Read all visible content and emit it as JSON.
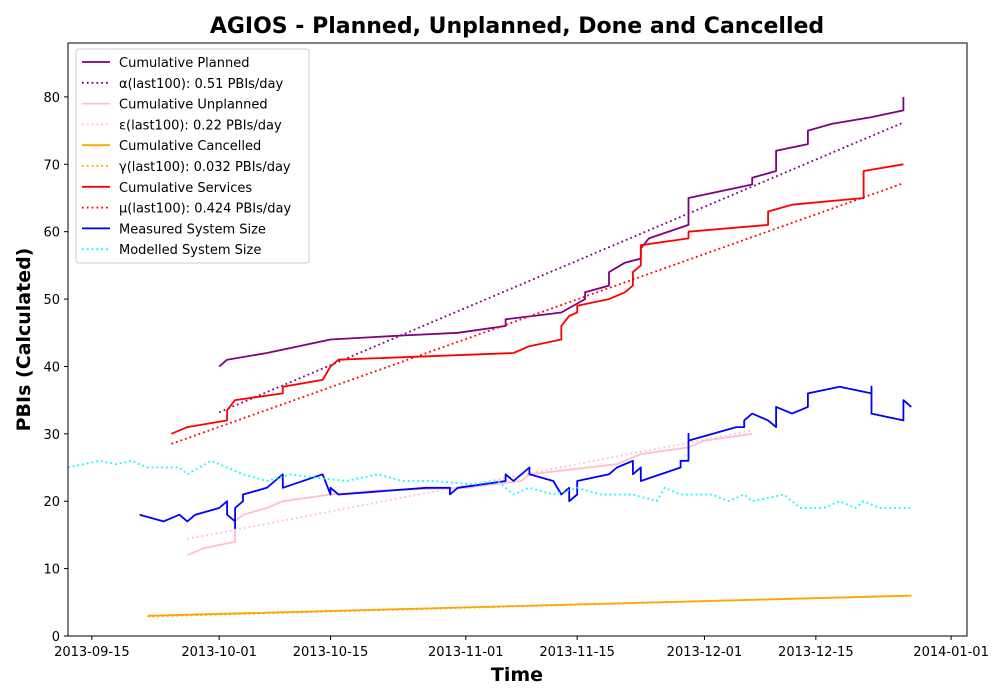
{
  "chart_data": {
    "type": "line",
    "title": "AGIOS - Planned, Unplanned, Done  and Cancelled",
    "xlabel": "Time",
    "ylabel": "PBIs (Calculated)",
    "x_range": [
      "2013-09-12",
      "2014-01-03"
    ],
    "ylim": [
      0,
      88
    ],
    "x_ticks": [
      "2013-09-15",
      "2013-10-01",
      "2013-10-15",
      "2013-11-01",
      "2013-11-15",
      "2013-12-01",
      "2013-12-15",
      "2014-01-01"
    ],
    "y_ticks": [
      0,
      10,
      20,
      30,
      40,
      50,
      60,
      70,
      80
    ],
    "grid": false,
    "legend_position": "top-left",
    "series": [
      {
        "name": "Cumulative Planned",
        "color": "#800080",
        "style": "solid",
        "points": [
          [
            "2013-10-01",
            40
          ],
          [
            "2013-10-02",
            41
          ],
          [
            "2013-10-07",
            42
          ],
          [
            "2013-10-11",
            43
          ],
          [
            "2013-10-15",
            44
          ],
          [
            "2013-10-24",
            44.6
          ],
          [
            "2013-10-31",
            45
          ],
          [
            "2013-11-06",
            46
          ],
          [
            "2013-11-06",
            47
          ],
          [
            "2013-11-13",
            48
          ],
          [
            "2013-11-16",
            50
          ],
          [
            "2013-11-16",
            51
          ],
          [
            "2013-11-19",
            52
          ],
          [
            "2013-11-19",
            54
          ],
          [
            "2013-11-21",
            55.4
          ],
          [
            "2013-11-23",
            56
          ],
          [
            "2013-11-23",
            57.5
          ],
          [
            "2013-11-24",
            59
          ],
          [
            "2013-11-29",
            61
          ],
          [
            "2013-11-29",
            65
          ],
          [
            "2013-12-05",
            66.5
          ],
          [
            "2013-12-07",
            67
          ],
          [
            "2013-12-07",
            68
          ],
          [
            "2013-12-10",
            69
          ],
          [
            "2013-12-10",
            72
          ],
          [
            "2013-12-14",
            73
          ],
          [
            "2013-12-14",
            75
          ],
          [
            "2013-12-17",
            76
          ],
          [
            "2013-12-22",
            77
          ],
          [
            "2013-12-26",
            78
          ],
          [
            "2013-12-26",
            80
          ]
        ]
      },
      {
        "name": "α(last100): 0.51 PBIs/day",
        "color": "#800080",
        "style": "dotted",
        "points": [
          [
            "2013-10-01",
            33.2
          ],
          [
            "2013-12-26",
            76.2
          ]
        ]
      },
      {
        "name": "Cumulative Unplanned",
        "color": "#ffc0cb",
        "style": "solid",
        "points": [
          [
            "2013-09-27",
            12
          ],
          [
            "2013-09-29",
            13
          ],
          [
            "2013-10-03",
            14
          ],
          [
            "2013-10-03",
            17
          ],
          [
            "2013-10-04",
            18
          ],
          [
            "2013-10-07",
            19
          ],
          [
            "2013-10-09",
            20
          ],
          [
            "2013-10-15",
            21
          ],
          [
            "2013-10-21",
            21.6
          ],
          [
            "2013-11-01",
            22
          ],
          [
            "2013-11-08",
            23
          ],
          [
            "2013-11-09",
            24
          ],
          [
            "2013-11-20",
            25.5
          ],
          [
            "2013-11-23",
            27
          ],
          [
            "2013-11-29",
            28
          ],
          [
            "2013-12-01",
            29
          ],
          [
            "2013-12-07",
            30
          ]
        ]
      },
      {
        "name": "ε(last100): 0.22 PBIs/day",
        "color": "#ffc0cb",
        "style": "dotted",
        "points": [
          [
            "2013-09-27",
            14.4
          ],
          [
            "2013-12-07",
            30.5
          ]
        ]
      },
      {
        "name": "Cumulative Cancelled",
        "color": "#ffa500",
        "style": "solid",
        "points": [
          [
            "2013-09-22",
            3
          ],
          [
            "2013-12-27",
            6
          ]
        ]
      },
      {
        "name": "γ(last100): 0.032 PBIs/day",
        "color": "#ffa500",
        "style": "dotted",
        "points": [
          [
            "2013-09-22",
            2.9
          ],
          [
            "2013-12-27",
            6.0
          ]
        ]
      },
      {
        "name": "Cumulative Services",
        "color": "#ff0000",
        "style": "solid",
        "points": [
          [
            "2013-09-25",
            30
          ],
          [
            "2013-09-27",
            31
          ],
          [
            "2013-10-02",
            32
          ],
          [
            "2013-10-02",
            33.5
          ],
          [
            "2013-10-03",
            35
          ],
          [
            "2013-10-09",
            36
          ],
          [
            "2013-10-09",
            37
          ],
          [
            "2013-10-14",
            38
          ],
          [
            "2013-10-15",
            40
          ],
          [
            "2013-10-16",
            41
          ],
          [
            "2013-11-07",
            42
          ],
          [
            "2013-11-09",
            43
          ],
          [
            "2013-11-13",
            44
          ],
          [
            "2013-11-13",
            46
          ],
          [
            "2013-11-14",
            47.5
          ],
          [
            "2013-11-15",
            48
          ],
          [
            "2013-11-15",
            49
          ],
          [
            "2013-11-19",
            50
          ],
          [
            "2013-11-21",
            51
          ],
          [
            "2013-11-22",
            52
          ],
          [
            "2013-11-22",
            54
          ],
          [
            "2013-11-23",
            55
          ],
          [
            "2013-11-23",
            58
          ],
          [
            "2013-11-29",
            59
          ],
          [
            "2013-11-29",
            60
          ],
          [
            "2013-12-09",
            61
          ],
          [
            "2013-12-09",
            63
          ],
          [
            "2013-12-12",
            64
          ],
          [
            "2013-12-21",
            65
          ],
          [
            "2013-12-21",
            69
          ],
          [
            "2013-12-26",
            70
          ]
        ]
      },
      {
        "name": "μ(last100): 0.424 PBIs/day",
        "color": "#ff0000",
        "style": "dotted",
        "points": [
          [
            "2013-09-25",
            28.5
          ],
          [
            "2013-12-26",
            67.2
          ]
        ]
      },
      {
        "name": "Measured System Size",
        "color": "#0000ff",
        "style": "solid",
        "points": [
          [
            "2013-09-21",
            18
          ],
          [
            "2013-09-24",
            17
          ],
          [
            "2013-09-26",
            18
          ],
          [
            "2013-09-27",
            17
          ],
          [
            "2013-09-28",
            18
          ],
          [
            "2013-10-01",
            19
          ],
          [
            "2013-10-02",
            20
          ],
          [
            "2013-10-02",
            18
          ],
          [
            "2013-10-03",
            17
          ],
          [
            "2013-10-03",
            16
          ],
          [
            "2013-10-03",
            19
          ],
          [
            "2013-10-04",
            20
          ],
          [
            "2013-10-04",
            21
          ],
          [
            "2013-10-07",
            22
          ],
          [
            "2013-10-08",
            23
          ],
          [
            "2013-10-09",
            24
          ],
          [
            "2013-10-09",
            22
          ],
          [
            "2013-10-14",
            24
          ],
          [
            "2013-10-15",
            21
          ],
          [
            "2013-10-15",
            22
          ],
          [
            "2013-10-16",
            21
          ],
          [
            "2013-10-27",
            22
          ],
          [
            "2013-10-30",
            22
          ],
          [
            "2013-10-30",
            21
          ],
          [
            "2013-10-31",
            22
          ],
          [
            "2013-11-06",
            23
          ],
          [
            "2013-11-06",
            24
          ],
          [
            "2013-11-07",
            23
          ],
          [
            "2013-11-09",
            25
          ],
          [
            "2013-11-09",
            24
          ],
          [
            "2013-11-12",
            23
          ],
          [
            "2013-11-13",
            21
          ],
          [
            "2013-11-14",
            22
          ],
          [
            "2013-11-14",
            20
          ],
          [
            "2013-11-15",
            21
          ],
          [
            "2013-11-15",
            23
          ],
          [
            "2013-11-19",
            24
          ],
          [
            "2013-11-20",
            25
          ],
          [
            "2013-11-22",
            26
          ],
          [
            "2013-11-22",
            24
          ],
          [
            "2013-11-23",
            25
          ],
          [
            "2013-11-23",
            23
          ],
          [
            "2013-11-28",
            25
          ],
          [
            "2013-11-28",
            26
          ],
          [
            "2013-11-29",
            26
          ],
          [
            "2013-11-29",
            30
          ],
          [
            "2013-11-29",
            29
          ],
          [
            "2013-12-05",
            31
          ],
          [
            "2013-12-06",
            31
          ],
          [
            "2013-12-06",
            32
          ],
          [
            "2013-12-07",
            33
          ],
          [
            "2013-12-09",
            32
          ],
          [
            "2013-12-10",
            31
          ],
          [
            "2013-12-10",
            34
          ],
          [
            "2013-12-12",
            33
          ],
          [
            "2013-12-14",
            34
          ],
          [
            "2013-12-14",
            36
          ],
          [
            "2013-12-18",
            37
          ],
          [
            "2013-12-22",
            36
          ],
          [
            "2013-12-22",
            37
          ],
          [
            "2013-12-22",
            33
          ],
          [
            "2013-12-26",
            32
          ],
          [
            "2013-12-26",
            35
          ],
          [
            "2013-12-27",
            34
          ]
        ]
      },
      {
        "name": "Modelled System Size",
        "color": "#00ffff",
        "style": "dotted",
        "points": [
          [
            "2013-09-12",
            25
          ],
          [
            "2013-09-16",
            26
          ],
          [
            "2013-09-18",
            25.5
          ],
          [
            "2013-09-20",
            26
          ],
          [
            "2013-09-22",
            25
          ],
          [
            "2013-09-26",
            25
          ],
          [
            "2013-09-27",
            24
          ],
          [
            "2013-09-30",
            26
          ],
          [
            "2013-10-02",
            25
          ],
          [
            "2013-10-04",
            24
          ],
          [
            "2013-10-07",
            23
          ],
          [
            "2013-10-10",
            24
          ],
          [
            "2013-10-13",
            23.5
          ],
          [
            "2013-10-17",
            23
          ],
          [
            "2013-10-21",
            24
          ],
          [
            "2013-10-24",
            23
          ],
          [
            "2013-10-28",
            23
          ],
          [
            "2013-11-02",
            22.5
          ],
          [
            "2013-11-05",
            23
          ],
          [
            "2013-11-07",
            21
          ],
          [
            "2013-11-09",
            22
          ],
          [
            "2013-11-12",
            21
          ],
          [
            "2013-11-15",
            22
          ],
          [
            "2013-11-18",
            21
          ],
          [
            "2013-11-22",
            21
          ],
          [
            "2013-11-25",
            20
          ],
          [
            "2013-11-26",
            22
          ],
          [
            "2013-11-28",
            21
          ],
          [
            "2013-12-02",
            21
          ],
          [
            "2013-12-04",
            20
          ],
          [
            "2013-12-06",
            21
          ],
          [
            "2013-12-07",
            20
          ],
          [
            "2013-12-11",
            21
          ],
          [
            "2013-12-13",
            19
          ],
          [
            "2013-12-16",
            19
          ],
          [
            "2013-12-18",
            20
          ],
          [
            "2013-12-20",
            19
          ],
          [
            "2013-12-21",
            20
          ],
          [
            "2013-12-23",
            19
          ],
          [
            "2013-12-27",
            19
          ]
        ]
      }
    ]
  }
}
